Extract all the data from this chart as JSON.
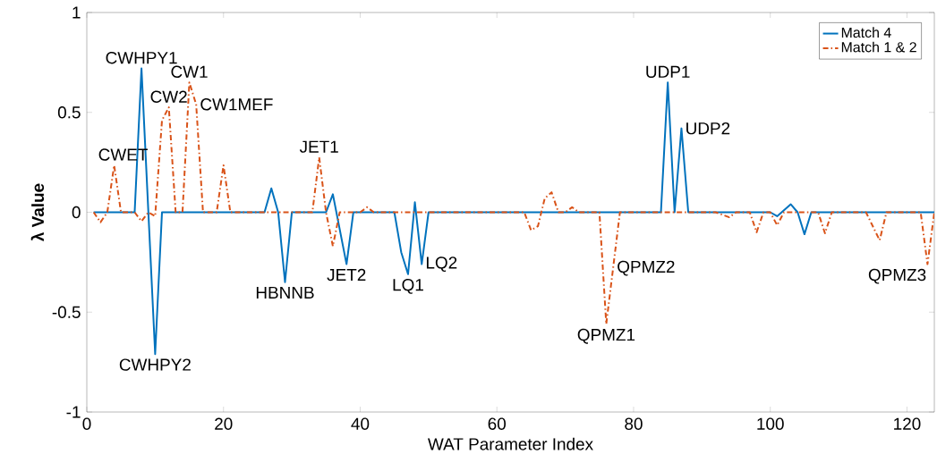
{
  "chart_data": {
    "type": "line",
    "xlabel": "WAT Parameter Index",
    "ylabel": "λ Value",
    "xlim": [
      0,
      124
    ],
    "ylim": [
      -1,
      1
    ],
    "xticks": [
      0,
      20,
      40,
      60,
      80,
      100,
      120
    ],
    "yticks": [
      -1,
      -0.5,
      0,
      0.5,
      1
    ],
    "grid": false,
    "legend": "top right",
    "series": [
      {
        "name": "Match 4",
        "color": "#0072bd",
        "line_style": "solid",
        "x": [
          1,
          7,
          8,
          10,
          11,
          26,
          27,
          28,
          29,
          30,
          35,
          36,
          38,
          39,
          45,
          46,
          47,
          48,
          49,
          50,
          84,
          85,
          86,
          87,
          88,
          100,
          101,
          103,
          104,
          105,
          106,
          124
        ],
        "values": [
          0,
          0,
          0.72,
          -0.71,
          0,
          0,
          0.12,
          0,
          -0.35,
          0,
          0,
          0.09,
          -0.26,
          0,
          0,
          -0.2,
          -0.31,
          0.05,
          -0.26,
          0,
          0,
          0.65,
          0,
          0.42,
          0,
          0,
          -0.02,
          0.04,
          0,
          -0.11,
          0,
          0
        ]
      },
      {
        "name": "Match 1 & 2",
        "color": "#d95319",
        "line_style": "dashdot",
        "x": [
          1,
          2,
          3,
          4,
          5,
          7,
          8,
          9,
          10,
          11,
          12,
          13,
          14,
          15,
          16,
          17,
          19,
          20,
          21,
          33,
          34,
          35,
          36,
          37,
          40,
          41,
          42,
          64,
          65,
          66,
          67,
          68,
          69,
          70,
          71,
          72,
          75,
          76,
          77,
          78,
          92,
          94,
          95,
          97,
          98,
          99,
          100,
          101,
          102,
          107,
          108,
          109,
          114,
          116,
          117,
          122,
          123,
          124
        ],
        "values": [
          0,
          -0.05,
          0,
          0.235,
          0,
          0,
          -0.045,
          0,
          -0.02,
          0.46,
          0.525,
          0,
          0,
          0.65,
          0.54,
          0,
          0,
          0.235,
          0,
          0,
          0.275,
          0,
          -0.17,
          0,
          0,
          0.025,
          0,
          0,
          -0.09,
          -0.07,
          0.07,
          0.1,
          0,
          0,
          0.025,
          0,
          0,
          -0.56,
          -0.28,
          0,
          0,
          -0.025,
          0,
          0,
          -0.1,
          0,
          0,
          -0.065,
          0,
          0,
          -0.105,
          0,
          0,
          -0.14,
          0,
          0,
          -0.26,
          0
        ]
      }
    ],
    "annotations": [
      {
        "text": "CWET",
        "x": 4,
        "y": 0.235
      },
      {
        "text": "CWHPY1",
        "x": 8,
        "y": 0.72
      },
      {
        "text": "CW2",
        "x": 12,
        "y": 0.525
      },
      {
        "text": "CW1",
        "x": 15,
        "y": 0.65
      },
      {
        "text": "CW1MEF",
        "x": 16,
        "y": 0.54
      },
      {
        "text": "CWHPY2",
        "x": 10,
        "y": -0.71
      },
      {
        "text": "HBNNB",
        "x": 29,
        "y": -0.35
      },
      {
        "text": "JET1",
        "x": 34,
        "y": 0.275
      },
      {
        "text": "JET2",
        "x": 38,
        "y": -0.26
      },
      {
        "text": "LQ1",
        "x": 47,
        "y": -0.31
      },
      {
        "text": "LQ2",
        "x": 49,
        "y": -0.26
      },
      {
        "text": "QPMZ1",
        "x": 76,
        "y": -0.56
      },
      {
        "text": "QPMZ2",
        "x": 77,
        "y": -0.28
      },
      {
        "text": "UDP1",
        "x": 85,
        "y": 0.65
      },
      {
        "text": "UDP2",
        "x": 87,
        "y": 0.42
      },
      {
        "text": "QPMZ3",
        "x": 123,
        "y": -0.26
      }
    ]
  }
}
